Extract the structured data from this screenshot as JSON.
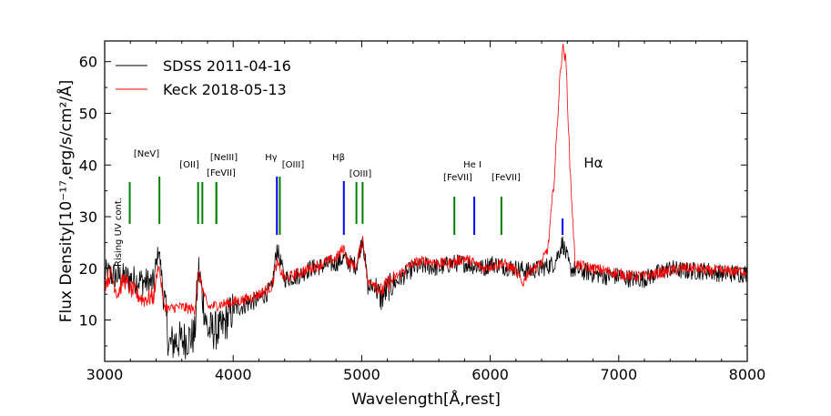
{
  "chart_data": {
    "type": "line",
    "title": "",
    "xlabel": "Wavelength[Å,rest]",
    "ylabel": "Flux Density[10⁻¹⁷,erg/s/cm²/Å]",
    "xlim": [
      3000,
      8000
    ],
    "ylim": [
      2,
      64
    ],
    "xticks": [
      3000,
      4000,
      5000,
      6000,
      7000,
      8000
    ],
    "xtick_labels": [
      "3000",
      "4000",
      "5000",
      "6000",
      "7000",
      "8000"
    ],
    "yticks": [
      10,
      20,
      30,
      40,
      50,
      60
    ],
    "ytick_labels": [
      "10",
      "20",
      "30",
      "40",
      "50",
      "60"
    ],
    "grid": false,
    "legend_position": "top-left",
    "series": [
      {
        "name": "SDSS 2011-04-16",
        "color": "#000000",
        "x": [
          3000,
          3100,
          3200,
          3300,
          3380,
          3420,
          3460,
          3500,
          3550,
          3600,
          3700,
          3730,
          3800,
          3900,
          4000,
          4100,
          4200,
          4300,
          4340,
          4400,
          4500,
          4600,
          4700,
          4800,
          4860,
          4900,
          4960,
          5007,
          5050,
          5100,
          5150,
          5200,
          5300,
          5400,
          5500,
          5600,
          5700,
          5800,
          5876,
          5950,
          6000,
          6100,
          6200,
          6300,
          6400,
          6500,
          6563,
          6620,
          6700,
          6800,
          6900,
          7000,
          7100,
          7200,
          7300,
          7400,
          7500,
          7600,
          7700,
          7800,
          7900,
          8000
        ],
        "y": [
          19,
          18.5,
          18,
          17.5,
          17,
          24,
          15,
          5,
          6,
          6,
          7,
          20,
          8,
          8,
          12,
          13,
          14,
          16,
          24,
          18,
          18.5,
          20,
          20.5,
          21,
          22,
          21,
          20.5,
          26,
          16,
          17,
          14,
          16,
          18,
          20,
          20.5,
          20,
          21,
          21,
          20.5,
          20,
          21,
          20.5,
          20,
          19.5,
          20,
          21,
          25,
          20,
          19.5,
          19,
          18.5,
          18.5,
          18,
          18,
          19,
          20,
          19.5,
          19.5,
          19.5,
          19,
          19,
          19
        ]
      },
      {
        "name": "Keck 2018-05-13",
        "color": "#ff0000",
        "x": [
          3000,
          3050,
          3100,
          3150,
          3200,
          3300,
          3380,
          3420,
          3460,
          3500,
          3550,
          3600,
          3700,
          3730,
          3800,
          3900,
          4000,
          4100,
          4200,
          4300,
          4340,
          4400,
          4500,
          4600,
          4700,
          4800,
          4860,
          4900,
          4960,
          5007,
          5050,
          5100,
          5150,
          5200,
          5300,
          5400,
          5500,
          5600,
          5700,
          5800,
          5876,
          5950,
          6000,
          6100,
          6200,
          6250,
          6300,
          6400,
          6450,
          6500,
          6540,
          6563,
          6590,
          6620,
          6660,
          6700,
          6800,
          6900,
          7000,
          7100,
          7200,
          7300,
          7400,
          7500,
          7600,
          7700,
          7800,
          7900,
          8000
        ],
        "y": [
          17,
          19,
          15,
          18,
          16,
          14,
          14.5,
          21,
          13,
          12,
          12.5,
          12.5,
          12,
          19,
          12.5,
          13,
          13.5,
          14,
          15,
          16.5,
          21,
          18,
          19,
          20,
          21,
          22,
          24,
          21,
          20.5,
          26,
          17,
          17.5,
          15.5,
          17,
          19,
          21,
          21.5,
          21,
          21,
          22,
          21,
          20,
          20.5,
          21,
          19.5,
          17,
          19.5,
          21,
          24,
          38,
          56,
          63,
          60,
          40,
          21,
          20.5,
          20,
          19.5,
          19,
          18.5,
          18.5,
          19,
          19.5,
          20,
          20,
          19.5,
          19.5,
          19.5,
          19.5
        ]
      }
    ],
    "annotations": [
      {
        "label": "Rising UV cont.",
        "x": 3195,
        "color": "#008000",
        "label_style": "vertical"
      },
      {
        "label": "[NeV]",
        "x": 3426,
        "color": "#008000"
      },
      {
        "label": "[OII]",
        "x": 3727,
        "color": "#008000"
      },
      {
        "label": "",
        "x": 3760,
        "color": "#008000"
      },
      {
        "label": "[NeIII]",
        "x": 3869,
        "color": "#008000"
      },
      {
        "label": "[FeVII]",
        "x": 3869,
        "color": "#008000"
      },
      {
        "label": "Hγ",
        "x": 4340,
        "color": "#0000ff"
      },
      {
        "label": "[OIII]",
        "x": 4363,
        "color": "#008000"
      },
      {
        "label": "Hβ",
        "x": 4861,
        "color": "#0000ff"
      },
      {
        "label": "[OIII]",
        "x": 4959,
        "color": "#008000"
      },
      {
        "label": "",
        "x": 5007,
        "color": "#008000"
      },
      {
        "label": "[FeVII]",
        "x": 5721,
        "color": "#008000"
      },
      {
        "label": "He I",
        "x": 5876,
        "color": "#0000ff"
      },
      {
        "label": "[FeVII]",
        "x": 6087,
        "color": "#008000"
      },
      {
        "label": "",
        "x": 6563,
        "color": "#0000ff"
      }
    ],
    "text_annotations": [
      {
        "label": "Hα",
        "x": 6800,
        "y": 38
      }
    ]
  }
}
